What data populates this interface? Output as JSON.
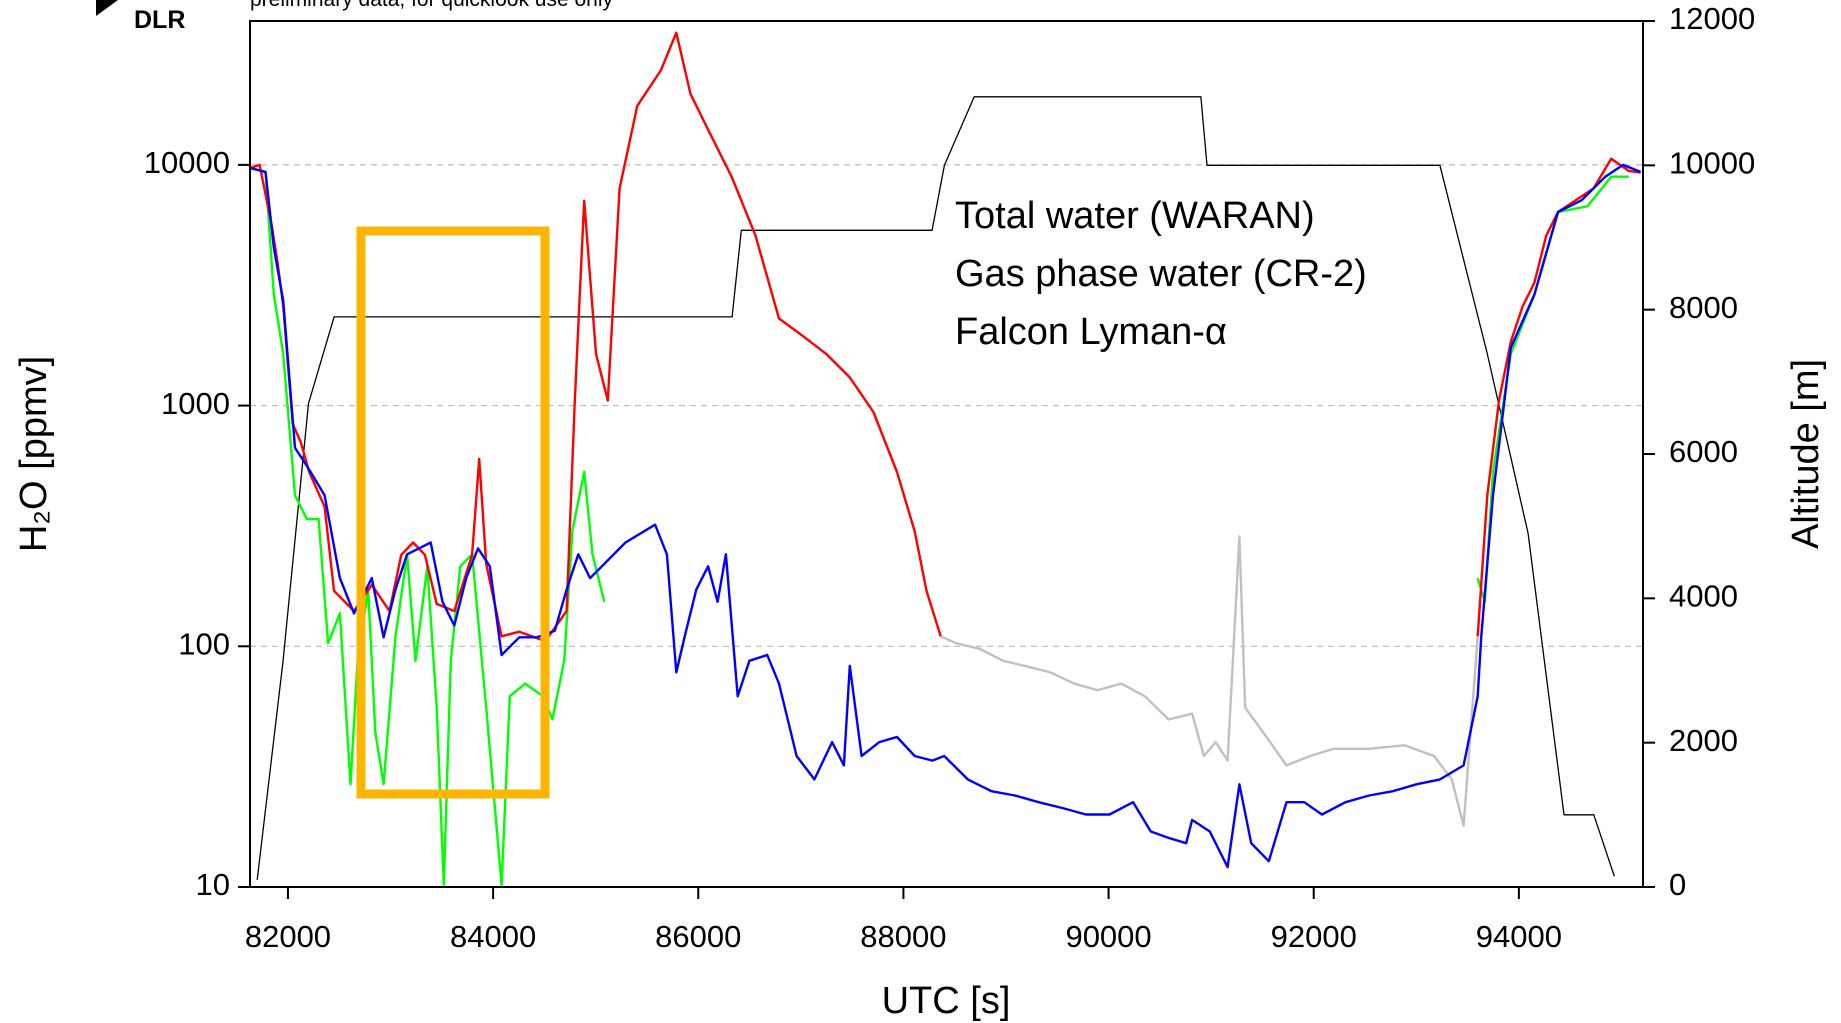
{
  "chart_data": {
    "type": "line",
    "logo": "DLR",
    "subtitle": "preliminary data, for quicklook use only",
    "xlabel": "UTC [s]",
    "ylabel": "H₂O [ppmv]",
    "y2label": "Altitude [m]",
    "xlim": [
      81630,
      95210
    ],
    "xticks": [
      82000,
      84000,
      86000,
      88000,
      90000,
      92000,
      94000
    ],
    "ylim": [
      10,
      39600
    ],
    "yscale": "log",
    "yticks": [
      10,
      100,
      1000,
      10000
    ],
    "y2lim": [
      0,
      12000
    ],
    "y2ticks": [
      0,
      2000,
      4000,
      6000,
      8000,
      10000,
      12000
    ],
    "grid": true,
    "series": [
      {
        "name": "Total water (WARAN)",
        "color": "#ff0000",
        "x": [
          81632,
          81724,
          81839,
          81896,
          81954,
          82046,
          82127,
          82207,
          82357,
          82449,
          82644,
          82817,
          82990,
          83105,
          83220,
          83335,
          83450,
          83622,
          83795,
          83864,
          83933,
          84083,
          84255,
          84509,
          84716,
          84796,
          84888,
          85003,
          85118,
          85233,
          85406,
          85636,
          85786,
          85924,
          86096,
          86327,
          86557,
          86787,
          87017,
          87247,
          87477,
          87707,
          87937,
          88110,
          88225,
          88363,
          91000,
          93599,
          93691,
          93806,
          93921,
          94036,
          94151,
          94266,
          94381,
          94554,
          94727,
          94900,
          95072,
          95187
        ],
        "values": [
          9700,
          10000,
          5700,
          4000,
          2600,
          840,
          700,
          530,
          380,
          170,
          140,
          180,
          140,
          240,
          270,
          240,
          150,
          140,
          240,
          600,
          220,
          110,
          115,
          105,
          140,
          1050,
          7100,
          1640,
          1050,
          8000,
          17600,
          24700,
          35400,
          19700,
          14000,
          8900,
          5100,
          2300,
          1950,
          1640,
          1310,
          940,
          530,
          300,
          170,
          110,
          null,
          110,
          420,
          1050,
          1840,
          2580,
          3240,
          5080,
          6370,
          7130,
          7980,
          10600,
          9440,
          9300
        ]
      },
      {
        "name": "Gas phase water (CR-2)",
        "color": "#0000ff",
        "x": [
          81632,
          81781,
          81862,
          81954,
          82069,
          82184,
          82357,
          82506,
          82644,
          82817,
          82932,
          83047,
          83162,
          83277,
          83392,
          83507,
          83622,
          83738,
          83853,
          83968,
          84083,
          84255,
          84428,
          84601,
          84716,
          84831,
          84946,
          85061,
          85291,
          85579,
          85694,
          85786,
          85866,
          85981,
          86096,
          86189,
          86269,
          86384,
          86499,
          86672,
          86787,
          86959,
          87132,
          87305,
          87420,
          87477,
          87592,
          87765,
          87937,
          88110,
          88283,
          88398,
          88628,
          88858,
          89088,
          89318,
          89549,
          89779,
          90009,
          90239,
          90412,
          90584,
          90757,
          90814,
          90987,
          91160,
          91275,
          91390,
          91562,
          91735,
          91908,
          92080,
          92310,
          92540,
          92771,
          93001,
          93231,
          93461,
          93599,
          93633,
          93748,
          93921,
          94151,
          94381,
          94612,
          94842,
          95015,
          95187
        ],
        "values": [
          9700,
          9350,
          4540,
          2730,
          667,
          562,
          424,
          192,
          137,
          192,
          109,
          172,
          241,
          255,
          270,
          153,
          122,
          192,
          255,
          215,
          92,
          109,
          109,
          116,
          172,
          241,
          192,
          215,
          270,
          320,
          241,
          78,
          109,
          172,
          215,
          153,
          241,
          62,
          87,
          92,
          70,
          35,
          28,
          40,
          32,
          83,
          35,
          40,
          42,
          35,
          33.5,
          35,
          28,
          25,
          24,
          22.5,
          21.3,
          20,
          20,
          22.5,
          17,
          16,
          15.2,
          19,
          17,
          12.1,
          26.7,
          15.2,
          12.8,
          22.5,
          22.5,
          20,
          22.5,
          24,
          25,
          26.7,
          28,
          32,
          62,
          109,
          424,
          1740,
          2890,
          6370,
          7130,
          8930,
          10000,
          9350
        ]
      },
      {
        "name": "Falcon Lyman-α",
        "color": "#00ff00",
        "x": [
          81632,
          81781,
          81862,
          81954,
          82069,
          82184,
          82299,
          82391,
          82506,
          82610,
          82679,
          82782,
          82852,
          82932,
          83047,
          83162,
          83243,
          83358,
          83450,
          83519,
          83588,
          83680,
          83795,
          83933,
          84083,
          84163,
          84313,
          84486,
          84578,
          84693,
          84773,
          84888,
          84969,
          85084,
          91000,
          93599,
          93668,
          93748,
          93921,
          94151,
          94381,
          94669,
          94900,
          95072
        ],
        "values": [
          9700,
          9350,
          2890,
          1640,
          424,
          338,
          338,
          103,
          137,
          26.7,
          87,
          172,
          44,
          26.7,
          109,
          241,
          87,
          215,
          55.6,
          10.2,
          87,
          215,
          241,
          55.6,
          10.2,
          62,
          70,
          62,
          49.7,
          87,
          302,
          531,
          241,
          153,
          null,
          192,
          153,
          531,
          1640,
          2890,
          6370,
          6730,
          8930,
          8930
        ]
      },
      {
        "color": "#c0c0c0",
        "x": [
          88363,
          88513,
          88743,
          88973,
          89203,
          89433,
          89664,
          89894,
          90124,
          90354,
          90584,
          90814,
          90929,
          91044,
          91160,
          91275,
          91332,
          91505,
          91735,
          91965,
          92195,
          92540,
          92886,
          93173,
          93346,
          93461,
          93599
        ],
        "values": [
          110,
          103,
          97.6,
          87,
          82.5,
          78,
          70,
          65.7,
          70,
          62,
          49.7,
          52.5,
          35,
          40,
          33.5,
          286,
          55.6,
          44,
          32,
          35,
          37.5,
          37.5,
          38.8,
          35,
          28,
          18,
          110
        ]
      },
      {
        "color": "#000000",
        "axis": "y2",
        "x": [
          81700,
          81950,
          82200,
          82450,
          86330,
          86420,
          88280,
          88400,
          88690,
          90900,
          90960,
          93230,
          93690,
          94090,
          94440,
          94730,
          94930
        ],
        "values": [
          100,
          3100,
          6700,
          7900,
          7900,
          9100,
          9100,
          10000,
          10950,
          10950,
          10000,
          10000,
          7400,
          4900,
          1000,
          1000,
          150
        ]
      }
    ]
  }
}
